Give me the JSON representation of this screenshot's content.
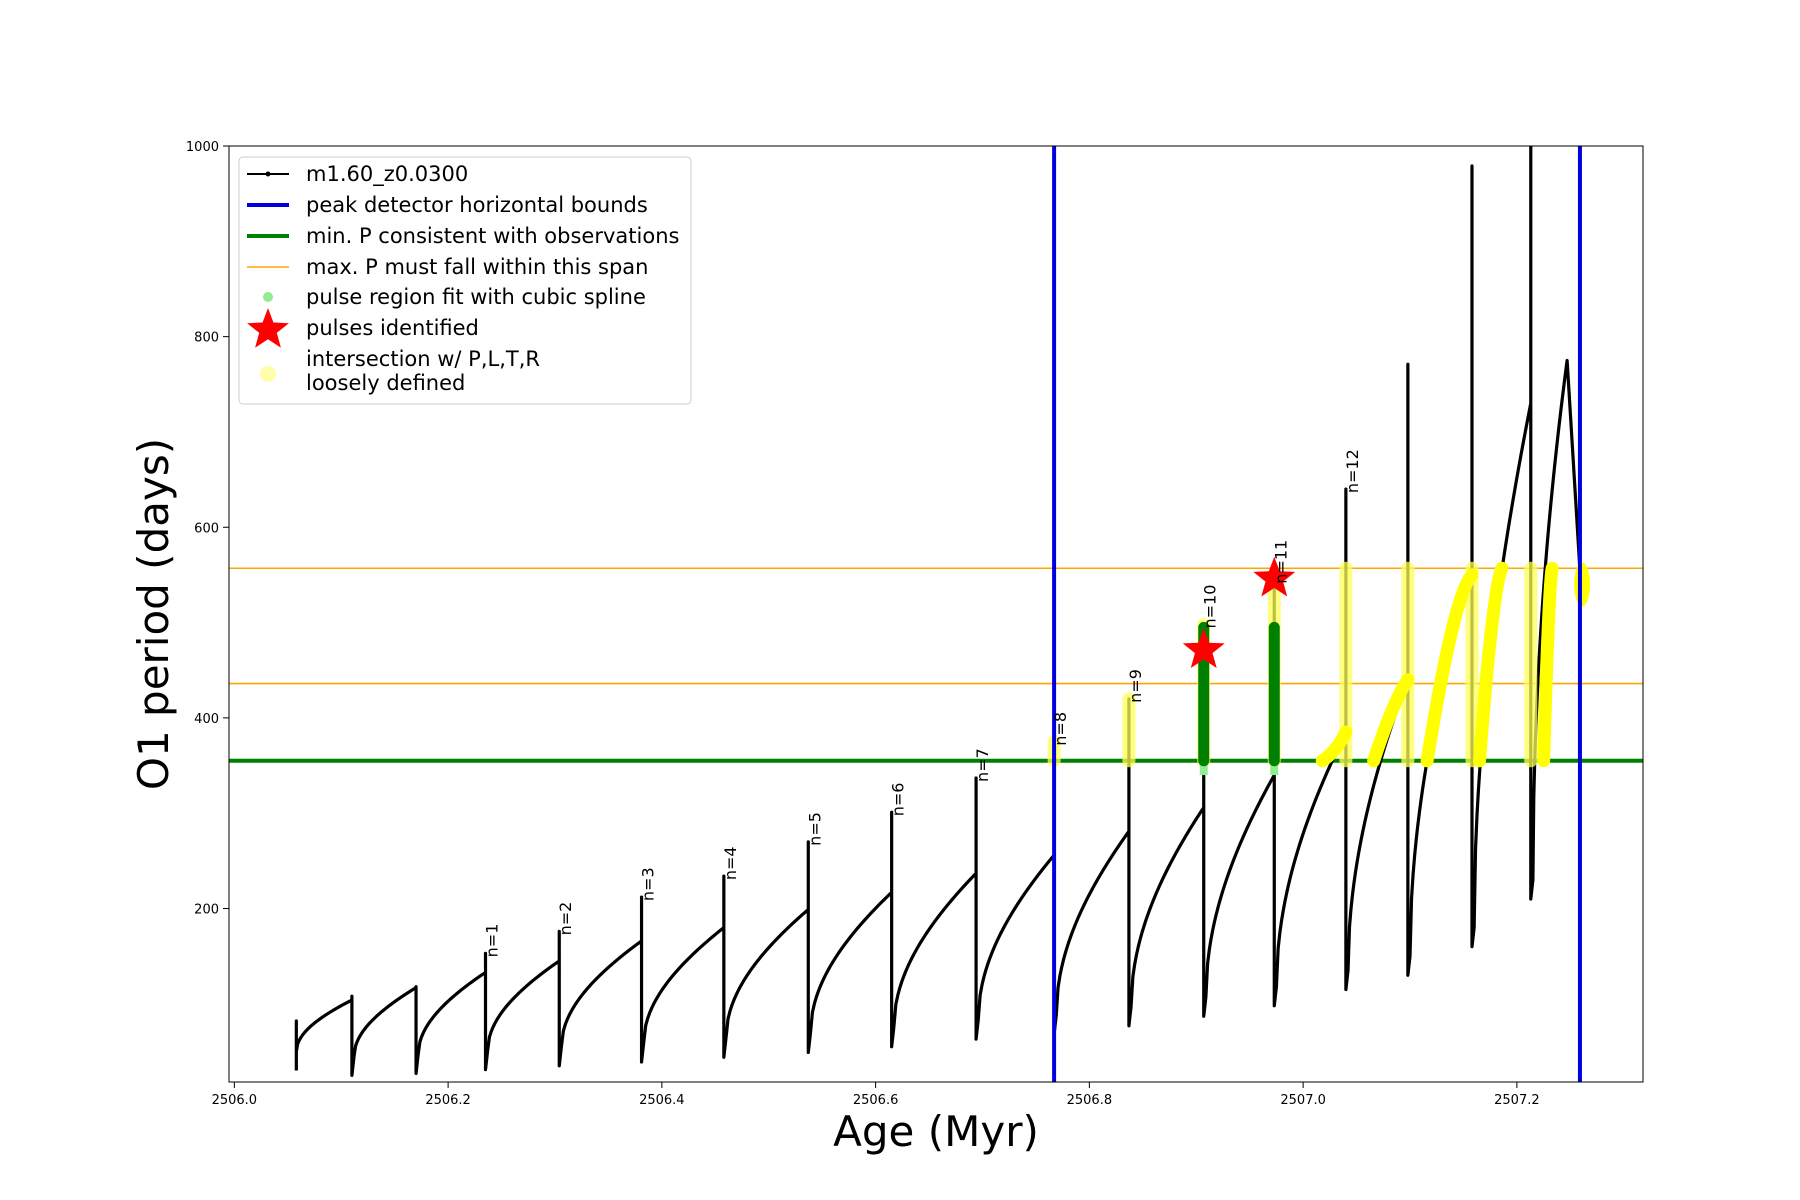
{
  "chart_data": {
    "type": "line",
    "title": "",
    "xlabel": "Age (Myr)",
    "ylabel": "O1 period (days)",
    "xlim": [
      2505.995,
      2507.318
    ],
    "ylim": [
      18,
      1000
    ],
    "xticks": [
      2506.0,
      2506.2,
      2506.4,
      2506.6,
      2506.8,
      2507.0,
      2507.2
    ],
    "xtick_labels": [
      "2506.0",
      "2506.2",
      "2506.4",
      "2506.6",
      "2506.8",
      "2507.0",
      "2507.2"
    ],
    "yticks": [
      200,
      400,
      600,
      800,
      1000
    ],
    "ytick_labels": [
      "200",
      "400",
      "600",
      "800",
      "1000"
    ],
    "grid": false,
    "legend_position": "upper left",
    "legend": [
      {
        "label": "m1.60_z0.0300",
        "kind": "line-marker",
        "color": "#000000"
      },
      {
        "label": "peak detector horizontal bounds",
        "kind": "line",
        "color": "#0000dd"
      },
      {
        "label": "min. P consistent with observations",
        "kind": "line",
        "color": "#008000"
      },
      {
        "label": "max. P must fall within this span",
        "kind": "line",
        "color": "#ffa500"
      },
      {
        "label": "pulse region fit with cubic spline",
        "kind": "dot",
        "color": "#90ee90"
      },
      {
        "label": "pulses identified",
        "kind": "star",
        "color": "#ff0000"
      },
      {
        "label": "intersection w/ P,L,T,R",
        "label2": "loosely defined",
        "kind": "dot",
        "color": "#ffffaa"
      }
    ],
    "vertical_bounds": [
      2506.767,
      2507.259
    ],
    "min_period_line": 355,
    "max_period_span": [
      436,
      557
    ],
    "pulses": [
      {
        "label": "n=1",
        "age": 2506.235,
        "start_p": 51,
        "peak_p": 133,
        "spike_p": 153
      },
      {
        "label": "n=2",
        "age": 2506.304,
        "start_p": 55,
        "peak_p": 145,
        "spike_p": 176
      },
      {
        "label": "n=3",
        "age": 2506.381,
        "start_p": 59,
        "peak_p": 166,
        "spike_p": 212
      },
      {
        "label": "n=4",
        "age": 2506.458,
        "start_p": 64,
        "peak_p": 180,
        "spike_p": 234
      },
      {
        "label": "n=5",
        "age": 2506.537,
        "start_p": 69,
        "peak_p": 199,
        "spike_p": 270
      },
      {
        "label": "n=6",
        "age": 2506.615,
        "start_p": 75,
        "peak_p": 217,
        "spike_p": 301
      },
      {
        "label": "n=7",
        "age": 2506.694,
        "start_p": 83,
        "peak_p": 237,
        "spike_p": 337
      },
      {
        "label": "n=8",
        "age": 2506.767,
        "start_p": 88,
        "peak_p": 256,
        "spike_p": 375
      },
      {
        "label": "n=9",
        "age": 2506.837,
        "start_p": 97,
        "peak_p": 281,
        "spike_p": 420
      },
      {
        "label": "n=10",
        "age": 2506.907,
        "start_p": 107,
        "peak_p": 306,
        "spike_p": 498
      },
      {
        "label": "n=11",
        "age": 2506.973,
        "start_p": 118,
        "peak_p": 340,
        "spike_p": 545
      },
      {
        "label": "n=12",
        "age": 2507.04,
        "start_p": 135,
        "peak_p": 385,
        "spike_p": 640
      }
    ],
    "extra_spikes": [
      {
        "age": 2507.098,
        "start_p": 150,
        "peak_p": 440,
        "spike_p": 771
      },
      {
        "age": 2507.158,
        "start_p": 180,
        "peak_p": 555,
        "spike_p": 979
      },
      {
        "age": 2507.213,
        "start_p": 230,
        "peak_p": 730,
        "spike_p": 1000
      }
    ],
    "identified_pulses": [
      {
        "age": 2506.907,
        "period": 471
      },
      {
        "age": 2506.973,
        "period": 546
      }
    ]
  }
}
